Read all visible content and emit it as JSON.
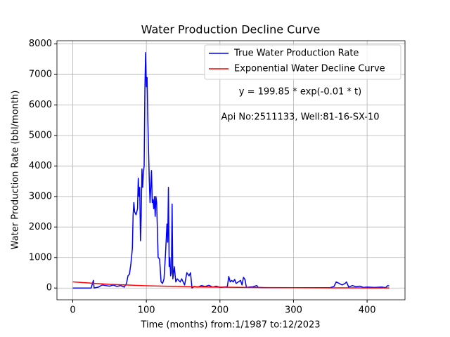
{
  "chart_data": {
    "type": "line",
    "title": "Water Production Decline Curve",
    "x_label": "Time (months) from:1/1987 to:12/2023",
    "y_label": "Water Production Rate (bbl/month)",
    "annotations": [
      "y = 199.85 * exp(-0.01 * t)",
      "Api No:2511133, Well:81-16-SX-10"
    ],
    "xlim": [
      -21.5,
      451.5
    ],
    "ylim": [
      -386,
      8106
    ],
    "xticks": [
      0,
      100,
      200,
      300,
      400
    ],
    "yticks": [
      0,
      1000,
      2000,
      3000,
      4000,
      5000,
      6000,
      7000,
      8000
    ],
    "grid": true,
    "legend": "upper right",
    "series": [
      {
        "name": "True Water Production Rate",
        "color": "#0000ff",
        "x": [
          0,
          25,
          28,
          29,
          35,
          40,
          45,
          50,
          55,
          60,
          65,
          70,
          73,
          75,
          77,
          79,
          81,
          82,
          83,
          84,
          86,
          88,
          89,
          90,
          91,
          92,
          93,
          94,
          95,
          96,
          97,
          98,
          99,
          100,
          101,
          102,
          103,
          104,
          105,
          106,
          107,
          108,
          109,
          110,
          111,
          112,
          113,
          114,
          116,
          118,
          120,
          122,
          124,
          126,
          128,
          129,
          130,
          131,
          132,
          133,
          134,
          135,
          136,
          138,
          140,
          142,
          144,
          146,
          148,
          150,
          152,
          155,
          158,
          160,
          162,
          165,
          170,
          175,
          180,
          185,
          190,
          195,
          200,
          210,
          212,
          214,
          216,
          218,
          220,
          222,
          225,
          228,
          230,
          232,
          234,
          236,
          240,
          245,
          250,
          252,
          260,
          300,
          350,
          355,
          358,
          362,
          366,
          370,
          372,
          375,
          380,
          385,
          390,
          395,
          400,
          410,
          420,
          425,
          428,
          430
        ],
        "values": [
          0,
          0,
          250,
          0,
          30,
          100,
          80,
          60,
          100,
          50,
          80,
          30,
          150,
          400,
          450,
          800,
          1300,
          2400,
          2800,
          2500,
          2400,
          2600,
          3600,
          3000,
          3300,
          1550,
          2400,
          3900,
          3300,
          3800,
          4000,
          6500,
          7720,
          6600,
          6900,
          5500,
          4500,
          3500,
          2800,
          3300,
          3850,
          2800,
          2900,
          2600,
          3000,
          2350,
          3000,
          2800,
          1000,
          950,
          200,
          150,
          300,
          1100,
          2100,
          1500,
          3300,
          700,
          1000,
          400,
          500,
          2750,
          300,
          700,
          200,
          300,
          250,
          200,
          300,
          200,
          100,
          500,
          400,
          500,
          0,
          50,
          30,
          80,
          50,
          90,
          30,
          60,
          20,
          40,
          380,
          200,
          250,
          200,
          280,
          150,
          200,
          250,
          100,
          350,
          280,
          20,
          30,
          40,
          80,
          20,
          10,
          10,
          15,
          50,
          200,
          150,
          100,
          150,
          200,
          30,
          80,
          40,
          60,
          20,
          30,
          20,
          30,
          10,
          80,
          70
        ]
      },
      {
        "name": "Exponential Water Decline Curve",
        "color": "#ff0000",
        "x": [
          0,
          50,
          100,
          150,
          200,
          250,
          300,
          350,
          400,
          430
        ],
        "values": [
          199.85,
          121.2,
          73.5,
          44.6,
          27.0,
          16.4,
          9.95,
          6.03,
          3.66,
          2.71
        ]
      }
    ]
  }
}
